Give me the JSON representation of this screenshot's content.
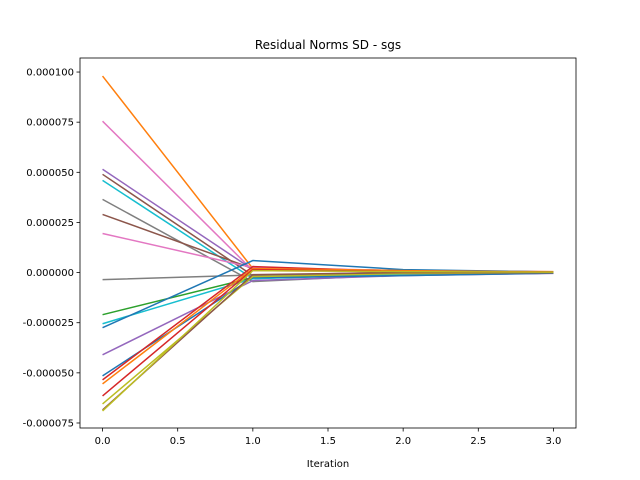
{
  "chart_data": {
    "type": "line",
    "title": "Residual Norms SD - sgs",
    "xlabel": "Iteration",
    "ylabel": "",
    "xlim": [
      -0.15,
      3.15
    ],
    "ylim": [
      -7.75e-05,
      0.000107
    ],
    "xticks": [
      0.0,
      0.5,
      1.0,
      1.5,
      2.0,
      2.5,
      3.0
    ],
    "xtick_labels": [
      "0.0",
      "0.5",
      "1.0",
      "1.5",
      "2.0",
      "2.5",
      "3.0"
    ],
    "yticks": [
      -7.5e-05,
      -5e-05,
      -2.5e-05,
      0.0,
      2.5e-05,
      5e-05,
      7.5e-05,
      0.0001
    ],
    "ytick_labels": [
      "-0.000075",
      "-0.000050",
      "-0.000025",
      "0.000000",
      "0.000025",
      "0.000050",
      "0.000075",
      "0.000100"
    ],
    "grid": false,
    "x": [
      0,
      1,
      2,
      3
    ],
    "series": [
      {
        "color": "#ff7f0e",
        "values": [
          9.8e-05,
          2e-06,
          1e-06,
          5e-07
        ]
      },
      {
        "color": "#e377c2",
        "values": [
          7.55e-05,
          1e-06,
          5e-07,
          2e-07
        ]
      },
      {
        "color": "#9467bd",
        "values": [
          5.15e-05,
          1.5e-06,
          5e-07,
          2e-07
        ]
      },
      {
        "color": "#8c564b",
        "values": [
          4.9e-05,
          -1.5e-06,
          3e-07,
          0.0
        ]
      },
      {
        "color": "#17becf",
        "values": [
          4.6e-05,
          -3e-06,
          -5e-07,
          -2e-07
        ]
      },
      {
        "color": "#7f7f7f",
        "values": [
          3.65e-05,
          -4.5e-06,
          -1e-06,
          -3e-07
        ]
      },
      {
        "color": "#8c564b",
        "values": [
          2.9e-05,
          2e-06,
          1e-06,
          3e-07
        ]
      },
      {
        "color": "#e377c2",
        "values": [
          1.95e-05,
          2.5e-06,
          1e-06,
          4e-07
        ]
      },
      {
        "color": "#7f7f7f",
        "values": [
          -3.5e-06,
          -1.2e-06,
          -4e-07,
          -1e-07
        ]
      },
      {
        "color": "#2ca02c",
        "values": [
          -2.1e-05,
          -2.5e-06,
          -1e-06,
          -3e-07
        ]
      },
      {
        "color": "#17becf",
        "values": [
          -2.55e-05,
          -3e-06,
          -1e-06,
          -3e-07
        ]
      },
      {
        "color": "#1f77b4",
        "values": [
          -2.75e-05,
          6e-06,
          1.5e-06,
          3e-07
        ]
      },
      {
        "color": "#9467bd",
        "values": [
          -4.1e-05,
          -4e-06,
          -1.5e-06,
          -4e-07
        ]
      },
      {
        "color": "#1f77b4",
        "values": [
          -5.15e-05,
          -2.5e-06,
          -1.5e-06,
          -3e-07
        ]
      },
      {
        "color": "#d62728",
        "values": [
          -5.35e-05,
          3e-06,
          5e-07,
          2e-07
        ]
      },
      {
        "color": "#ff7f0e",
        "values": [
          -5.55e-05,
          2e-06,
          1e-06,
          3e-07
        ]
      },
      {
        "color": "#d62728",
        "values": [
          -6.15e-05,
          1.5e-06,
          5e-07,
          2e-07
        ]
      },
      {
        "color": "#bcbd22",
        "values": [
          -6.55e-05,
          -2e-06,
          -5e-07,
          0.0
        ]
      },
      {
        "color": "#8c564b",
        "values": [
          -6.85e-05,
          -1e-06,
          0.0,
          0.0
        ]
      },
      {
        "color": "#bcbd22",
        "values": [
          -6.9e-05,
          1e-06,
          5e-07,
          2e-07
        ]
      }
    ]
  }
}
